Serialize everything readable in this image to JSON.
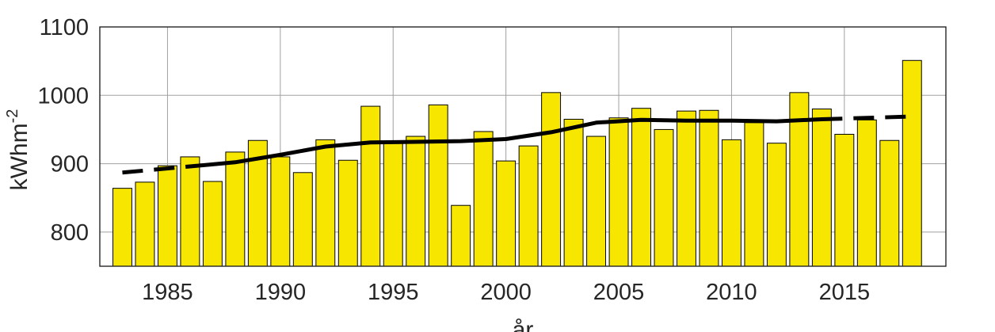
{
  "chart_data": {
    "type": "bar",
    "title": "",
    "xlabel": "år",
    "ylabel": "kWhm",
    "ylabel_superscript": "-2",
    "xlim": [
      1982,
      2019.5
    ],
    "ylim": [
      750,
      1100
    ],
    "xticks": [
      1985,
      1990,
      1995,
      2000,
      2005,
      2010,
      2015
    ],
    "yticks": [
      800,
      900,
      1000,
      1100
    ],
    "grid": true,
    "bar_color": "#f7e600",
    "years": [
      1983,
      1984,
      1985,
      1986,
      1987,
      1988,
      1989,
      1990,
      1991,
      1992,
      1993,
      1994,
      1995,
      1996,
      1997,
      1998,
      1999,
      2000,
      2001,
      2002,
      2003,
      2004,
      2005,
      2006,
      2007,
      2008,
      2009,
      2010,
      2011,
      2012,
      2013,
      2014,
      2015,
      2016,
      2017,
      2018
    ],
    "values": [
      864,
      873,
      897,
      910,
      874,
      917,
      934,
      910,
      887,
      935,
      905,
      984,
      933,
      940,
      986,
      839,
      947,
      904,
      926,
      1004,
      965,
      940,
      967,
      981,
      950,
      977,
      978,
      935,
      960,
      930,
      1004,
      980,
      943,
      964,
      934,
      1051
    ],
    "trend_solid": {
      "x": [
        1986,
        1988,
        1990,
        1992,
        1994,
        1996,
        1998,
        2000,
        2002,
        2004,
        2006,
        2008,
        2010,
        2012,
        2014
      ],
      "y": [
        896,
        902,
        913,
        925,
        931,
        932,
        933,
        936,
        946,
        960,
        964,
        963,
        963,
        962,
        965
      ]
    },
    "trend_dashed": {
      "x": [
        1983,
        1986,
        2014,
        2018
      ],
      "y": [
        887,
        896,
        965,
        969
      ]
    }
  }
}
